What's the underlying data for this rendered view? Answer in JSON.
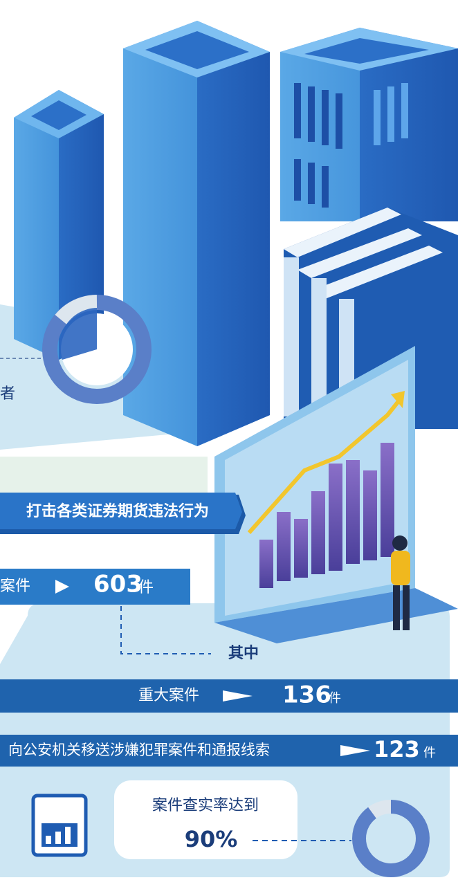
{
  "top_fragment": "者",
  "banner": "打击各类证券期货违法行为",
  "total": {
    "label": "案件",
    "value": 603,
    "unit": "件"
  },
  "breakdown_label": "其中",
  "items": [
    {
      "label": "重大案件",
      "value": 136,
      "unit": "件"
    },
    {
      "label": "向公安机关移送涉嫌犯罪案件和通报线索",
      "value": 123,
      "unit": "件"
    }
  ],
  "rate": {
    "label": "案件查实率达到",
    "value": {
      "value": 90,
      "label": "90%"
    }
  }
}
